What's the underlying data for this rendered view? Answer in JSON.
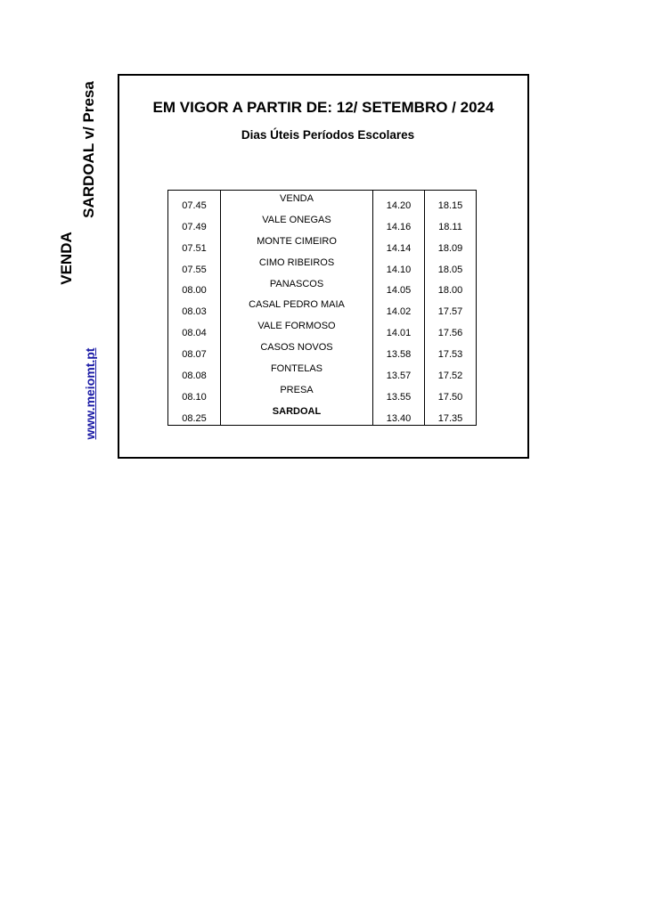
{
  "side": {
    "origin": "VENDA",
    "route": "SARDOAL v/ Presa",
    "website": "www.meiomt.pt",
    "website_color": "#1a1aa6"
  },
  "header": {
    "title": "EM VIGOR A PARTIR DE: 12/ SETEMBRO / 2024",
    "subtitle": "Dias Úteis Períodos Escolares"
  },
  "schedule": [
    {
      "t1": "07.45",
      "stop": "VENDA",
      "t2": "14.20",
      "t3": "18.15"
    },
    {
      "t1": "07.49",
      "stop": "VALE ONEGAS",
      "t2": "14.16",
      "t3": "18.11"
    },
    {
      "t1": "07.51",
      "stop": "MONTE CIMEIRO",
      "t2": "14.14",
      "t3": "18.09"
    },
    {
      "t1": "07.55",
      "stop": "CIMO RIBEIROS",
      "t2": "14.10",
      "t3": "18.05"
    },
    {
      "t1": "08.00",
      "stop": "PANASCOS",
      "t2": "14.05",
      "t3": "18.00"
    },
    {
      "t1": "08.03",
      "stop": "CASAL PEDRO MAIA",
      "t2": "14.02",
      "t3": "17.57"
    },
    {
      "t1": "08.04",
      "stop": "VALE FORMOSO",
      "t2": "14.01",
      "t3": "17.56"
    },
    {
      "t1": "08.07",
      "stop": "CASOS NOVOS",
      "t2": "13.58",
      "t3": "17.53"
    },
    {
      "t1": "08.08",
      "stop": "FONTELAS",
      "t2": "13.57",
      "t3": "17.52"
    },
    {
      "t1": "08.10",
      "stop": "PRESA",
      "t2": "13.55",
      "t3": "17.50"
    },
    {
      "t1": "08.25",
      "stop": "SARDOAL",
      "t2": "13.40",
      "t3": "17.35"
    }
  ]
}
